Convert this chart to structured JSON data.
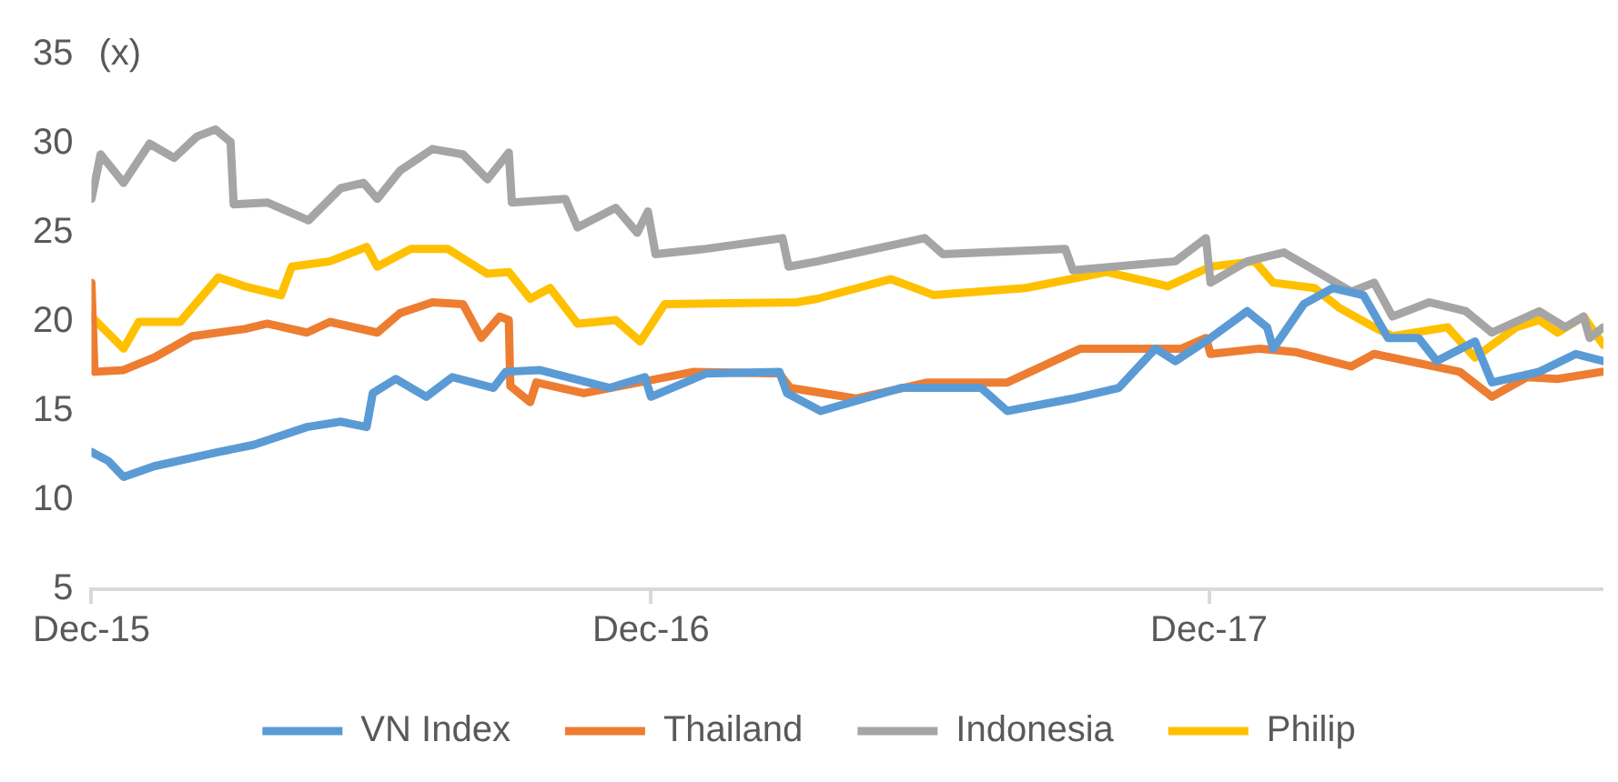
{
  "chart_data": {
    "type": "line",
    "ylabel": "(x)",
    "xlim": [
      "2015-12-01",
      "2018-08-16"
    ],
    "xticks": [
      {
        "value": "2015-12-01",
        "label": "Dec-15"
      },
      {
        "value": "2016-12-01",
        "label": "Dec-16"
      },
      {
        "value": "2017-12-01",
        "label": "Dec-17"
      }
    ],
    "ylim": [
      5,
      35
    ],
    "yticks": [
      5,
      10,
      15,
      20,
      25,
      30,
      35
    ],
    "grid": false,
    "legend": "bottom",
    "marker": "none",
    "line_style": "solid",
    "series": [
      {
        "name": "VN Index",
        "color": "#5b9bd5",
        "x": [
          "2015-12-01",
          "2015-12-12",
          "2015-12-22",
          "2016-01-11",
          "2016-02-22",
          "2016-03-16",
          "2016-04-20",
          "2016-05-12",
          "2016-05-29",
          "2016-06-02",
          "2016-06-17",
          "2016-07-07",
          "2016-07-24",
          "2016-08-20",
          "2016-08-28",
          "2016-09-19",
          "2016-11-04",
          "2016-11-27",
          "2016-12-01",
          "2017-01-06",
          "2017-02-23",
          "2017-02-28",
          "2017-03-22",
          "2017-05-14",
          "2017-07-05",
          "2017-07-22",
          "2017-09-03",
          "2017-10-03",
          "2017-10-27",
          "2017-11-09",
          "2017-12-02",
          "2017-12-26",
          "2018-01-08",
          "2018-01-12",
          "2018-02-01",
          "2018-02-20",
          "2018-03-12",
          "2018-03-28",
          "2018-04-17",
          "2018-04-29",
          "2018-05-24",
          "2018-06-04",
          "2018-07-05",
          "2018-07-29",
          "2018-08-16"
        ],
        "values": [
          12.7,
          12.2,
          11.3,
          11.9,
          12.7,
          13.1,
          14.1,
          14.4,
          14.1,
          16.0,
          16.8,
          15.8,
          16.9,
          16.3,
          17.2,
          17.3,
          16.3,
          16.9,
          15.8,
          17.1,
          17.2,
          16.0,
          15.0,
          16.3,
          16.3,
          15.0,
          15.7,
          16.3,
          18.5,
          17.8,
          19.1,
          20.6,
          19.7,
          18.5,
          21.0,
          21.9,
          21.5,
          19.1,
          19.1,
          17.8,
          18.9,
          16.6,
          17.2,
          18.2,
          17.8
        ]
      },
      {
        "name": "Thailand",
        "color": "#ed7d31",
        "x": [
          "2015-12-01",
          "2015-12-03",
          "2015-12-22",
          "2016-01-11",
          "2016-02-05",
          "2016-03-10",
          "2016-03-25",
          "2016-04-20",
          "2016-05-05",
          "2016-06-05",
          "2016-06-20",
          "2016-07-11",
          "2016-07-31",
          "2016-08-12",
          "2016-08-24",
          "2016-08-30",
          "2016-08-31",
          "2016-09-13",
          "2016-09-17",
          "2016-10-18",
          "2016-12-29",
          "2017-02-23",
          "2017-03-02",
          "2017-04-14",
          "2017-05-31",
          "2017-07-22",
          "2017-09-08",
          "2017-11-13",
          "2017-11-29",
          "2017-12-02",
          "2018-01-03",
          "2018-01-27",
          "2018-03-04",
          "2018-03-19",
          "2018-05-14",
          "2018-06-04",
          "2018-06-27",
          "2018-07-17",
          "2018-08-15"
        ],
        "values": [
          22.2,
          17.2,
          17.3,
          18.0,
          19.2,
          19.6,
          19.9,
          19.4,
          20.0,
          19.4,
          20.5,
          21.1,
          21.0,
          19.1,
          20.3,
          20.1,
          16.4,
          15.5,
          16.6,
          16.0,
          17.2,
          17.1,
          16.3,
          15.7,
          16.6,
          16.6,
          18.5,
          18.5,
          19.1,
          18.2,
          18.5,
          18.3,
          17.5,
          18.2,
          17.2,
          15.8,
          16.9,
          16.8,
          17.2
        ]
      },
      {
        "name": "Indonesia",
        "color": "#a5a5a5",
        "x": [
          "2015-12-01",
          "2015-12-07",
          "2015-12-22",
          "2016-01-08",
          "2016-01-24",
          "2016-02-08",
          "2016-02-20",
          "2016-03-01",
          "2016-03-03",
          "2016-03-25",
          "2016-04-21",
          "2016-05-12",
          "2016-05-27",
          "2016-06-05",
          "2016-06-20",
          "2016-07-11",
          "2016-07-31",
          "2016-08-16",
          "2016-08-30",
          "2016-09-01",
          "2016-10-06",
          "2016-10-14",
          "2016-11-08",
          "2016-11-22",
          "2016-11-29",
          "2016-12-04",
          "2017-01-06",
          "2017-02-25",
          "2017-03-01",
          "2017-03-20",
          "2017-05-29",
          "2017-06-10",
          "2017-08-29",
          "2017-09-03",
          "2017-11-09",
          "2017-11-29",
          "2017-12-02",
          "2017-12-26",
          "2018-01-19",
          "2018-02-08",
          "2018-03-04",
          "2018-03-19",
          "2018-03-31",
          "2018-04-24",
          "2018-05-18",
          "2018-06-04",
          "2018-07-05",
          "2018-07-22",
          "2018-08-03",
          "2018-08-07",
          "2018-08-16"
        ],
        "values": [
          26.9,
          29.4,
          27.8,
          30.0,
          29.2,
          30.4,
          30.8,
          30.1,
          26.6,
          26.7,
          25.7,
          27.5,
          27.8,
          26.9,
          28.5,
          29.7,
          29.4,
          28.0,
          29.5,
          26.7,
          26.9,
          25.3,
          26.4,
          25.0,
          26.2,
          23.8,
          24.1,
          24.7,
          23.1,
          23.4,
          24.7,
          23.8,
          24.1,
          22.9,
          23.4,
          24.7,
          22.2,
          23.4,
          23.9,
          22.9,
          21.7,
          22.2,
          20.3,
          21.1,
          20.6,
          19.4,
          20.6,
          19.7,
          20.3,
          19.1,
          19.7
        ]
      },
      {
        "name": "Philip",
        "color": "#ffc000",
        "x": [
          "2015-12-01",
          "2015-12-22",
          "2016-01-01",
          "2016-01-28",
          "2016-02-22",
          "2016-03-10",
          "2016-04-03",
          "2016-04-10",
          "2016-05-05",
          "2016-05-29",
          "2016-06-05",
          "2016-06-27",
          "2016-07-21",
          "2016-08-16",
          "2016-08-30",
          "2016-09-13",
          "2016-09-26",
          "2016-10-14",
          "2016-11-08",
          "2016-11-24",
          "2016-12-10",
          "2017-03-06",
          "2017-03-20",
          "2017-05-07",
          "2017-06-04",
          "2017-08-03",
          "2017-09-25",
          "2017-11-04",
          "2017-12-02",
          "2017-12-31",
          "2018-01-12",
          "2018-02-08",
          "2018-02-24",
          "2018-03-19",
          "2018-03-31",
          "2018-05-06",
          "2018-05-24",
          "2018-06-20",
          "2018-07-05",
          "2018-07-17",
          "2018-08-03",
          "2018-08-16"
        ],
        "values": [
          20.3,
          18.5,
          20.0,
          20.0,
          22.5,
          22.0,
          21.5,
          23.1,
          23.4,
          24.2,
          23.1,
          24.1,
          24.1,
          22.7,
          22.8,
          21.3,
          21.9,
          19.9,
          20.1,
          18.9,
          21.0,
          21.1,
          21.3,
          22.4,
          21.5,
          21.9,
          22.8,
          22.0,
          23.1,
          23.4,
          22.2,
          21.9,
          20.8,
          19.7,
          19.2,
          19.7,
          18.0,
          19.7,
          20.1,
          19.4,
          20.3,
          18.7
        ]
      }
    ]
  }
}
